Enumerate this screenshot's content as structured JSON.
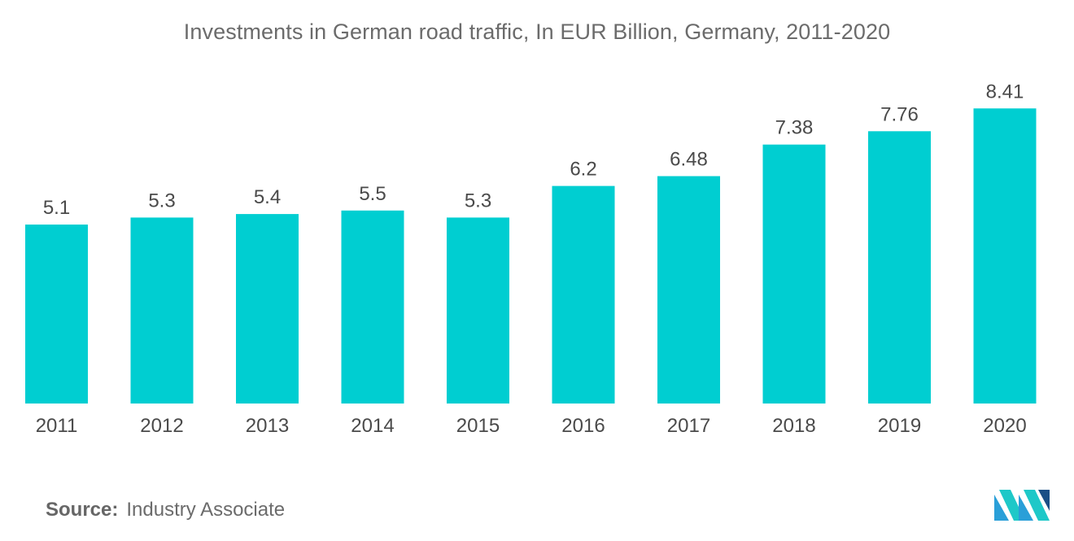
{
  "chart_data": {
    "type": "bar",
    "title": "Investments in German road traffic, In EUR Billion, Germany, 2011-2020",
    "categories": [
      "2011",
      "2012",
      "2013",
      "2014",
      "2015",
      "2016",
      "2017",
      "2018",
      "2019",
      "2020"
    ],
    "values": [
      5.1,
      5.3,
      5.4,
      5.5,
      5.3,
      6.2,
      6.48,
      7.38,
      7.76,
      8.41
    ],
    "value_labels": [
      "5.1",
      "5.3",
      "5.4",
      "5.5",
      "5.3",
      "6.2",
      "6.48",
      "7.38",
      "7.76",
      "8.41"
    ],
    "xlabel": "",
    "ylabel": "",
    "ylim": [
      0,
      11.5
    ],
    "grid": false,
    "legend": "none",
    "bar_color": "#00ced1"
  },
  "source": {
    "label": "Source:",
    "value": "Industry Associate"
  },
  "logo": {
    "icon": "mordor-intelligence-logo-icon",
    "colors": [
      "#2a9fd8",
      "#1ec8c8",
      "#1a4f86"
    ]
  }
}
